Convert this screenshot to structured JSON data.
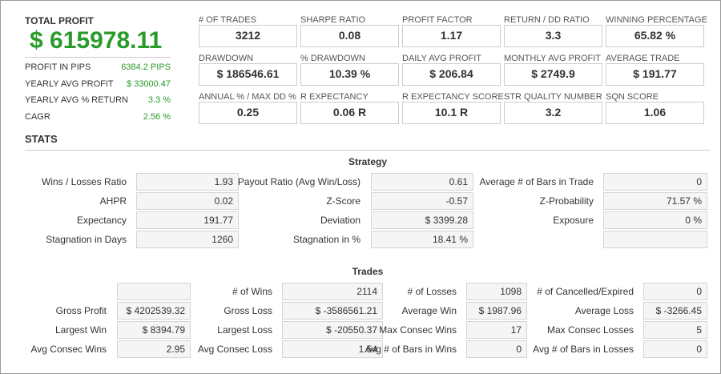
{
  "header": {
    "total_profit_label": "TOTAL PROFIT",
    "total_profit": "$ 615978.11"
  },
  "summary": [
    {
      "label": "PROFIT IN PIPS",
      "value": "6384.2 PIPS"
    },
    {
      "label": "YEARLY AVG PROFIT",
      "value": "$ 33000.47"
    },
    {
      "label": "YEARLY AVG % RETURN",
      "value": "3.3 %"
    },
    {
      "label": "CAGR",
      "value": "2.56 %"
    }
  ],
  "metrics": [
    [
      {
        "label": "# OF TRADES",
        "value": "3212"
      },
      {
        "label": "SHARPE RATIO",
        "value": "0.08"
      },
      {
        "label": "PROFIT FACTOR",
        "value": "1.17"
      },
      {
        "label": "RETURN / DD RATIO",
        "value": "3.3"
      },
      {
        "label": "WINNING PERCENTAGE",
        "value": "65.82 %"
      }
    ],
    [
      {
        "label": "DRAWDOWN",
        "value": "$ 186546.61"
      },
      {
        "label": "% DRAWDOWN",
        "value": "10.39 %"
      },
      {
        "label": "DAILY AVG PROFIT",
        "value": "$ 206.84"
      },
      {
        "label": "MONTHLY AVG PROFIT",
        "value": "$ 2749.9"
      },
      {
        "label": "AVERAGE TRADE",
        "value": "$ 191.77"
      }
    ],
    [
      {
        "label": "ANNUAL % / MAX DD %",
        "value": "0.25"
      },
      {
        "label": "R EXPECTANCY",
        "value": "0.06 R"
      },
      {
        "label": "R EXPECTANCY SCORE",
        "value": "10.1 R"
      },
      {
        "label": "STR QUALITY NUMBER",
        "value": "3.2"
      },
      {
        "label": "SQN SCORE",
        "value": "1.06"
      }
    ]
  ],
  "stats_title": "STATS",
  "strategy": {
    "title": "Strategy",
    "rows": [
      [
        {
          "label": "Wins / Losses Ratio",
          "value": "1.93"
        },
        {
          "label": "Payout Ratio (Avg Win/Loss)",
          "value": "0.61"
        },
        {
          "label": "Average # of Bars in Trade",
          "value": "0"
        }
      ],
      [
        {
          "label": "AHPR",
          "value": "0.02"
        },
        {
          "label": "Z-Score",
          "value": "-0.57"
        },
        {
          "label": "Z-Probability",
          "value": "71.57 %"
        }
      ],
      [
        {
          "label": "Expectancy",
          "value": "191.77"
        },
        {
          "label": "Deviation",
          "value": "$ 3399.28"
        },
        {
          "label": "Exposure",
          "value": "0 %"
        }
      ],
      [
        {
          "label": "Stagnation in Days",
          "value": "1260"
        },
        {
          "label": "Stagnation in %",
          "value": "18.41 %"
        },
        null
      ]
    ]
  },
  "trades": {
    "title": "Trades",
    "rows": [
      [
        null,
        {
          "label": "# of Wins",
          "value": "2114"
        },
        {
          "label": "# of Losses",
          "value": "1098"
        },
        {
          "label": "# of Cancelled/Expired",
          "value": "0"
        }
      ],
      [
        {
          "label": "Gross Profit",
          "value": "$ 4202539.32"
        },
        {
          "label": "Gross Loss",
          "value": "$ -3586561.21"
        },
        {
          "label": "Average Win",
          "value": "$ 1987.96"
        },
        {
          "label": "Average Loss",
          "value": "$ -3266.45"
        }
      ],
      [
        {
          "label": "Largest Win",
          "value": "$ 8394.79"
        },
        {
          "label": "Largest Loss",
          "value": "$ -20550.37"
        },
        {
          "label": "Max Consec Wins",
          "value": "17"
        },
        {
          "label": "Max Consec Losses",
          "value": "5"
        }
      ],
      [
        {
          "label": "Avg Consec Wins",
          "value": "2.95"
        },
        {
          "label": "Avg Consec Loss",
          "value": "1.54"
        },
        {
          "label": "Avg # of Bars in Wins",
          "value": "0"
        },
        {
          "label": "Avg # of Bars in Losses",
          "value": "0"
        }
      ]
    ]
  }
}
